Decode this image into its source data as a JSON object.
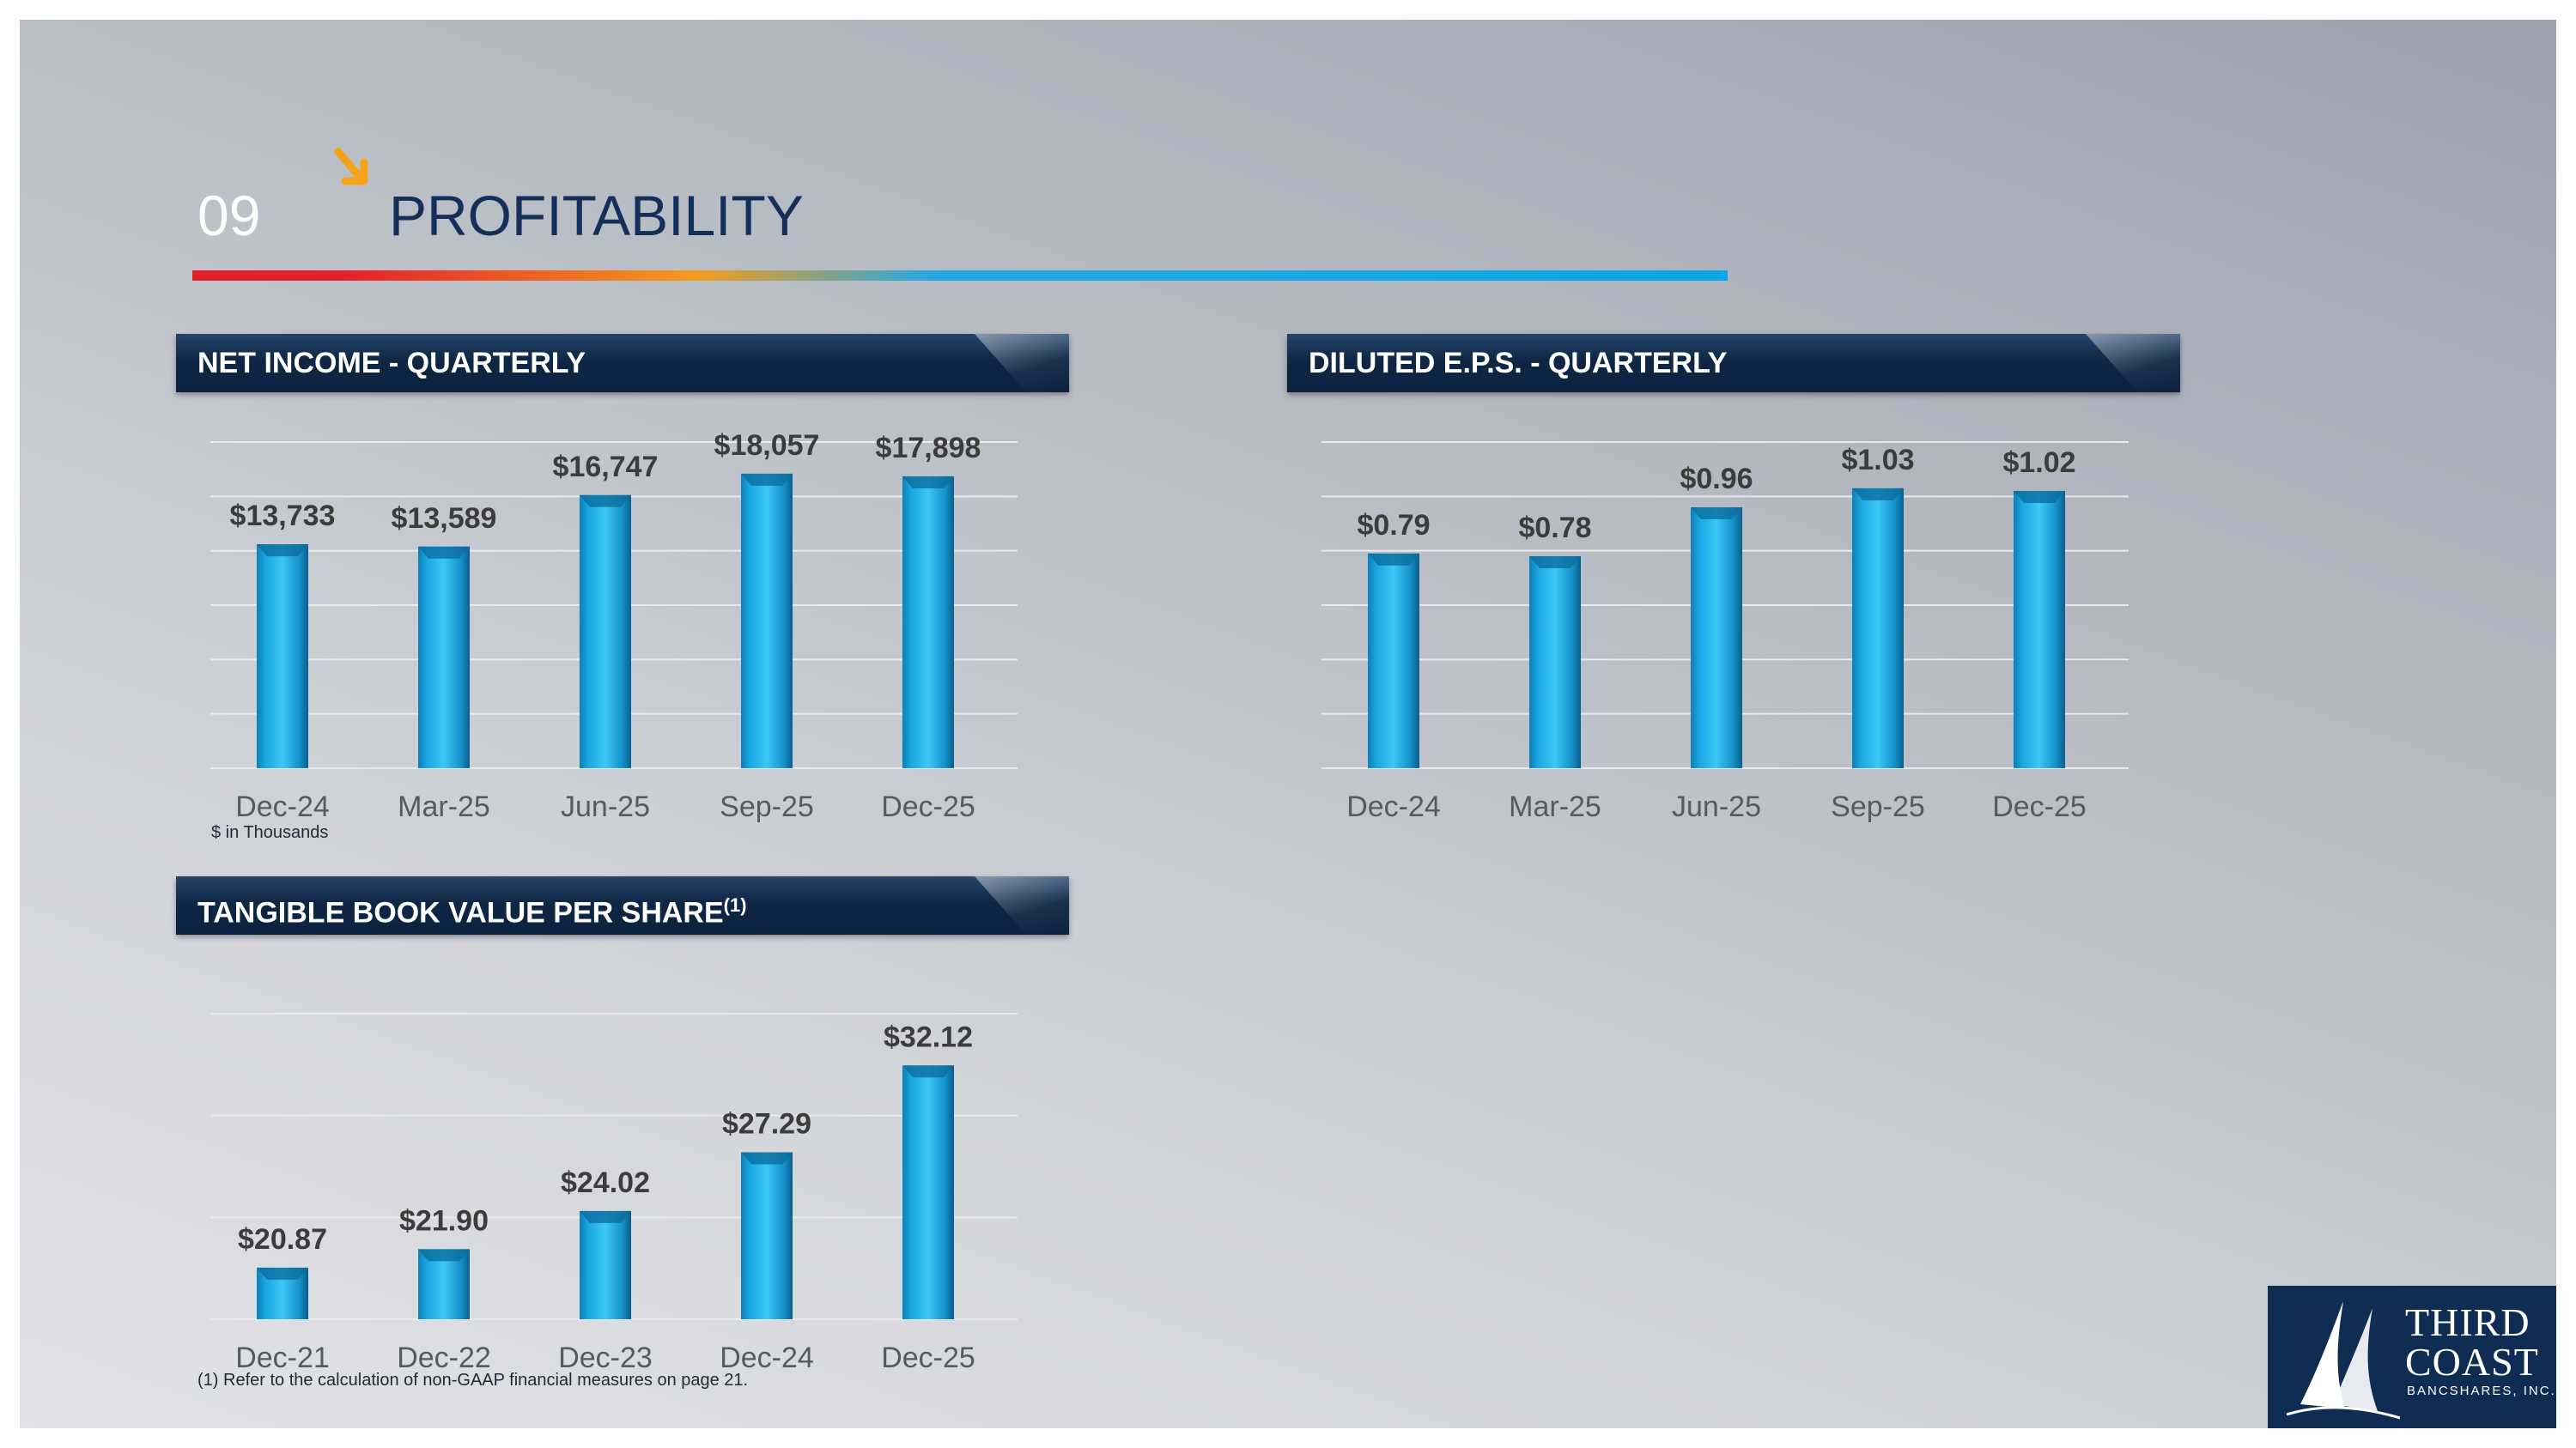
{
  "header": {
    "section_number": "09",
    "title": "PROFITABILITY"
  },
  "colors": {
    "bar": "#1aa9e4",
    "banner": "#0f2744",
    "title": "#14305a",
    "accent_arrow": "#f5a31a"
  },
  "net_income": {
    "banner": "NET INCOME - QUARTERLY",
    "note": "$ in Thousands"
  },
  "eps": {
    "banner": "DILUTED E.P.S. - QUARTERLY"
  },
  "tbv": {
    "banner": "TANGIBLE BOOK VALUE PER SHARE",
    "banner_sup": "(1)"
  },
  "footnote": "(1) Refer to the calculation of non-GAAP financial measures on page 21.",
  "logo": {
    "line1": "THIRD",
    "line2": "COAST",
    "line3": "BANCSHARES, INC."
  },
  "chart_data": [
    {
      "type": "bar",
      "title": "NET INCOME - QUARTERLY",
      "categories": [
        "Dec-24",
        "Mar-25",
        "Jun-25",
        "Sep-25",
        "Dec-25"
      ],
      "values": [
        13733,
        13589,
        16747,
        18057,
        17898
      ],
      "labels": [
        "$13,733",
        "$13,589",
        "$16,747",
        "$18,057",
        "$17,898"
      ],
      "ylim": [
        0,
        20000
      ],
      "grid": true
    },
    {
      "type": "bar",
      "title": "DILUTED E.P.S. - QUARTERLY",
      "categories": [
        "Dec-24",
        "Mar-25",
        "Jun-25",
        "Sep-25",
        "Dec-25"
      ],
      "values": [
        0.79,
        0.78,
        0.96,
        1.03,
        1.02
      ],
      "labels": [
        "$0.79",
        "$0.78",
        "$0.96",
        "$1.03",
        "$1.02"
      ],
      "ylim": [
        0,
        1.2
      ],
      "grid": true
    },
    {
      "type": "bar",
      "title": "TANGIBLE BOOK VALUE PER SHARE",
      "categories": [
        "Dec-21",
        "Dec-22",
        "Dec-23",
        "Dec-24",
        "Dec-25"
      ],
      "values": [
        20.87,
        21.9,
        24.02,
        27.29,
        32.12
      ],
      "labels": [
        "$20.87",
        "$21.90",
        "$24.02",
        "$27.29",
        "$32.12"
      ],
      "ylim": [
        18,
        35
      ],
      "grid": true
    }
  ]
}
